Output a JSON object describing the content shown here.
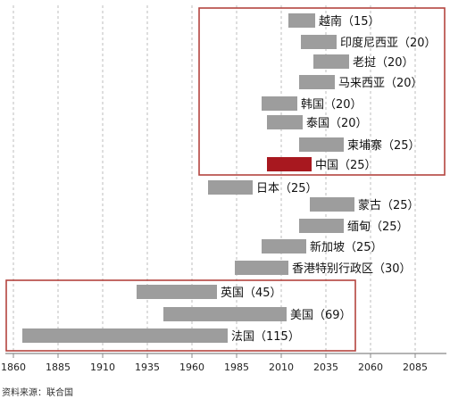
{
  "chart_data": {
    "type": "bar",
    "subtype": "floating-range",
    "x_ticks": [
      "1860",
      "1885",
      "1910",
      "1935",
      "1960",
      "1985",
      "2010",
      "2035",
      "2060",
      "2085"
    ],
    "xlim": [
      1860,
      2110
    ],
    "grid": "dashed vertical lines at each tick",
    "series": [
      {
        "label": "越南（15）",
        "start": 2014,
        "end": 2029,
        "years": 15,
        "highlight": false
      },
      {
        "label": "印度尼西亚（20）",
        "start": 2021,
        "end": 2041,
        "years": 20,
        "highlight": false
      },
      {
        "label": "老挝（20）",
        "start": 2028,
        "end": 2048,
        "years": 20,
        "highlight": false
      },
      {
        "label": "马来西亚（20）",
        "start": 2020,
        "end": 2040,
        "years": 20,
        "highlight": false
      },
      {
        "label": "韩国（20）",
        "start": 1999,
        "end": 2019,
        "years": 20,
        "highlight": false
      },
      {
        "label": "泰国（20）",
        "start": 2002,
        "end": 2022,
        "years": 20,
        "highlight": false
      },
      {
        "label": "柬埔寨（25）",
        "start": 2020,
        "end": 2045,
        "years": 25,
        "highlight": false
      },
      {
        "label": "中国（25）",
        "start": 2002,
        "end": 2027,
        "years": 25,
        "highlight": true
      },
      {
        "label": "日本（25）",
        "start": 1969,
        "end": 1994,
        "years": 25,
        "highlight": false
      },
      {
        "label": "蒙古（25）",
        "start": 2026,
        "end": 2051,
        "years": 25,
        "highlight": false
      },
      {
        "label": "缅甸（25）",
        "start": 2020,
        "end": 2045,
        "years": 25,
        "highlight": false
      },
      {
        "label": "新加坡（25）",
        "start": 1999,
        "end": 2024,
        "years": 25,
        "highlight": false
      },
      {
        "label": "香港特别行政区（30）",
        "start": 1984,
        "end": 2014,
        "years": 30,
        "highlight": false
      },
      {
        "label": "英国（45）",
        "start": 1929,
        "end": 1974,
        "years": 45,
        "highlight": false
      },
      {
        "label": "美国（69）",
        "start": 1944,
        "end": 2013,
        "years": 69,
        "highlight": false
      },
      {
        "label": "法国（115）",
        "start": 1865,
        "end": 1980,
        "years": 115,
        "highlight": false
      }
    ],
    "colors": {
      "bar": "#9d9d9d",
      "highlight": "#a8181f",
      "frame": "#b4443f",
      "grid": "#bdbdbd"
    }
  },
  "source_note": "资料来源：联合国"
}
